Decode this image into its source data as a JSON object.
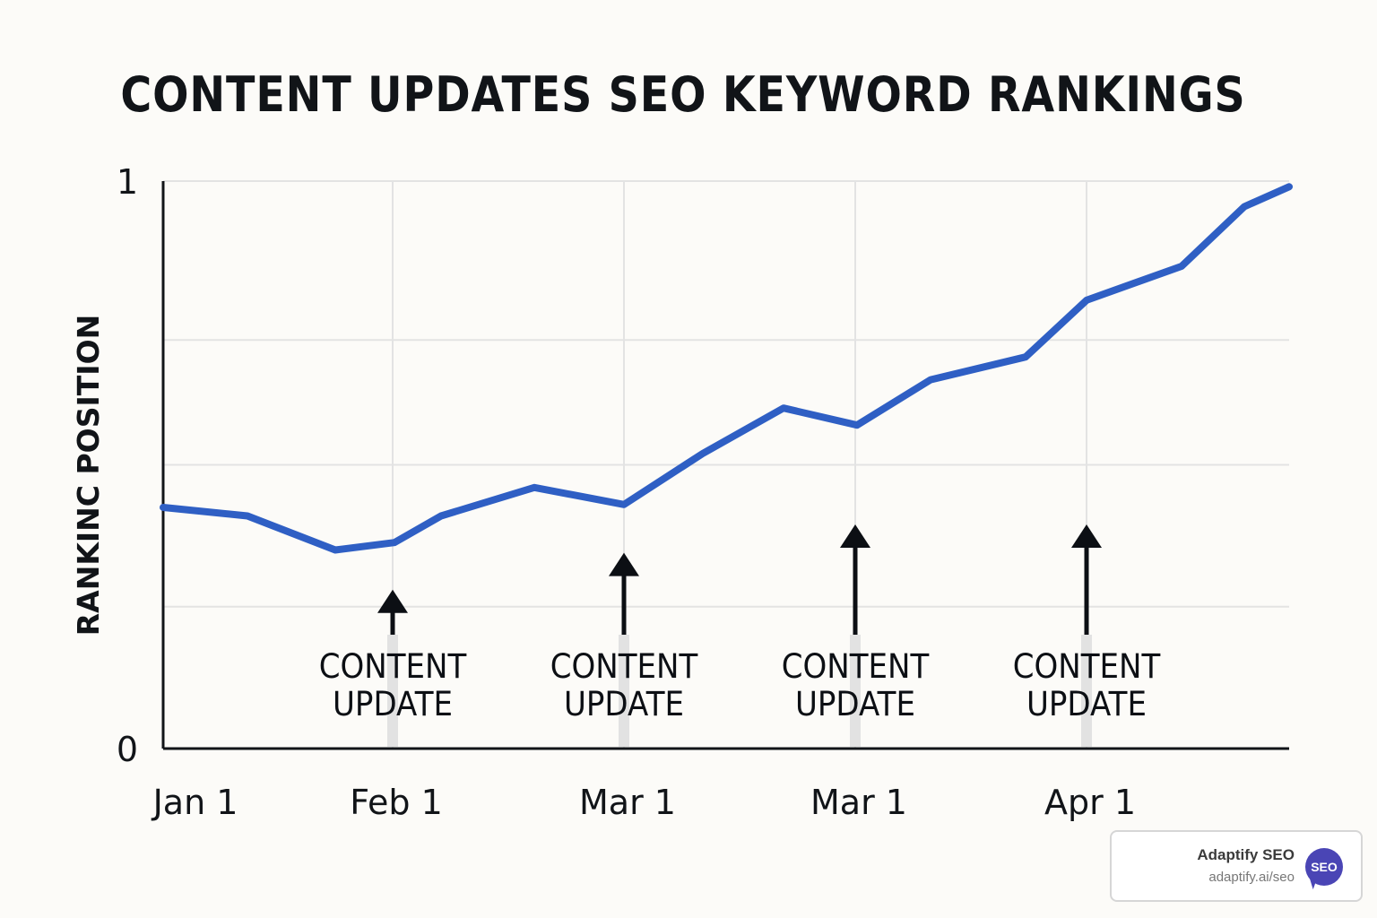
{
  "chart_data": {
    "type": "line",
    "title": "CONTENT UPDATES SEO KEYWORD RANKINGS",
    "ylabel": "RANKINC POSITION",
    "ylim": [
      0,
      1
    ],
    "y_tick_labels": [
      "0",
      "1"
    ],
    "x_tick_labels": [
      "Jan 1",
      "Feb 1",
      "Mar 1",
      "Mar 1",
      "Apr 1"
    ],
    "grid": true,
    "series": [
      {
        "color": "#2f5fc4",
        "values": [
          0.425,
          0.41,
          0.35,
          0.363,
          0.41,
          0.46,
          0.43,
          0.52,
          0.6,
          0.57,
          0.65,
          0.69,
          0.79,
          0.85,
          0.955,
          0.99
        ]
      }
    ],
    "annotations": [
      {
        "label_lines": [
          "CONTENT",
          "UPDATE"
        ],
        "arrow_top": 0.28
      },
      {
        "label_lines": [
          "CONTENT",
          "UPDATE"
        ],
        "arrow_top": 0.345
      },
      {
        "label_lines": [
          "CONTENT",
          "UPDATE"
        ],
        "arrow_top": 0.395
      },
      {
        "label_lines": [
          "CONTENT",
          "UPDATE"
        ],
        "arrow_top": 0.395
      }
    ]
  },
  "watermark": {
    "name": "Adaptify SEO",
    "url": "adaptify.ai/seo",
    "logo_text": "SEO",
    "logo_color": "#4a45b5"
  }
}
